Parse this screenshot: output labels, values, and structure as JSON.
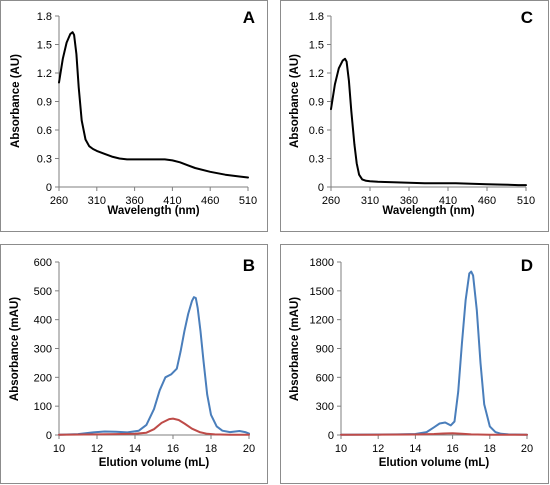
{
  "chart_data": [
    {
      "panel_label": "A",
      "type": "line",
      "xlabel": "Wavelength  (nm)",
      "ylabel": "Absorbance (AU)",
      "xlim": [
        260,
        510
      ],
      "ylim": [
        0,
        1.8
      ],
      "xticks": [
        "260",
        "310",
        "360",
        "410",
        "460",
        "510"
      ],
      "yticks": [
        "0",
        "0.3",
        "0.6",
        "0.9",
        "1.2",
        "1.5",
        "1.8"
      ],
      "grid": false,
      "series": [
        {
          "color": "#000000",
          "x": [
            260,
            265,
            270,
            275,
            278,
            280,
            283,
            286,
            290,
            295,
            300,
            305,
            310,
            320,
            330,
            340,
            350,
            360,
            380,
            400,
            410,
            420,
            430,
            440,
            460,
            480,
            500,
            510
          ],
          "y": [
            1.1,
            1.35,
            1.52,
            1.61,
            1.63,
            1.6,
            1.4,
            1.05,
            0.7,
            0.5,
            0.43,
            0.4,
            0.38,
            0.35,
            0.32,
            0.3,
            0.29,
            0.29,
            0.29,
            0.29,
            0.28,
            0.26,
            0.23,
            0.2,
            0.16,
            0.13,
            0.11,
            0.1
          ]
        }
      ]
    },
    {
      "panel_label": "C",
      "type": "line",
      "xlabel": "Wavelength  (nm)",
      "ylabel": "Absorbance (AU)",
      "xlim": [
        260,
        510
      ],
      "ylim": [
        0,
        1.8
      ],
      "xticks": [
        "260",
        "310",
        "360",
        "410",
        "460",
        "510"
      ],
      "yticks": [
        "0",
        "0.3",
        "0.6",
        "0.9",
        "1.2",
        "1.5",
        "1.8"
      ],
      "grid": false,
      "series": [
        {
          "color": "#000000",
          "x": [
            260,
            265,
            270,
            275,
            278,
            280,
            283,
            286,
            290,
            293,
            296,
            300,
            305,
            310,
            320,
            340,
            360,
            380,
            400,
            420,
            440,
            460,
            480,
            500,
            510
          ],
          "y": [
            0.82,
            1.08,
            1.25,
            1.33,
            1.35,
            1.32,
            1.12,
            0.8,
            0.45,
            0.25,
            0.13,
            0.08,
            0.065,
            0.06,
            0.055,
            0.05,
            0.045,
            0.04,
            0.04,
            0.04,
            0.035,
            0.03,
            0.025,
            0.02,
            0.02
          ]
        }
      ]
    },
    {
      "panel_label": "B",
      "type": "line",
      "xlabel": "Elution volume (mL)",
      "ylabel": "Absorbance (mAU)",
      "xlim": [
        10,
        20
      ],
      "ylim": [
        0,
        600
      ],
      "xticks": [
        "10",
        "12",
        "14",
        "16",
        "18",
        "20"
      ],
      "yticks": [
        "0",
        "100",
        "200",
        "300",
        "400",
        "500",
        "600"
      ],
      "grid": false,
      "series": [
        {
          "color": "#4a7ebb",
          "x": [
            10,
            11,
            11.8,
            12.4,
            13,
            13.6,
            14.2,
            14.6,
            15,
            15.3,
            15.6,
            15.9,
            16.2,
            16.4,
            16.6,
            16.8,
            17,
            17.1,
            17.2,
            17.3,
            17.45,
            17.6,
            17.8,
            18,
            18.3,
            18.6,
            19,
            19.5,
            19.8,
            20
          ],
          "y": [
            1,
            3,
            9,
            12,
            11,
            9,
            15,
            35,
            90,
            155,
            200,
            210,
            230,
            290,
            360,
            420,
            465,
            478,
            475,
            440,
            360,
            260,
            140,
            70,
            30,
            15,
            10,
            14,
            10,
            5
          ]
        },
        {
          "color": "#be4b48",
          "x": [
            10,
            12,
            13,
            14,
            14.6,
            15,
            15.4,
            15.8,
            16,
            16.3,
            16.6,
            17,
            17.4,
            17.8,
            18.2,
            19,
            20
          ],
          "y": [
            1,
            2,
            3,
            4,
            8,
            20,
            42,
            55,
            57,
            52,
            40,
            22,
            10,
            4,
            2,
            1,
            1
          ]
        }
      ]
    },
    {
      "panel_label": "D",
      "type": "line",
      "xlabel": "Elution volume (mL)",
      "ylabel": "Absorbance (mAU)",
      "xlim": [
        10,
        20
      ],
      "ylim": [
        0,
        1800
      ],
      "xticks": [
        "10",
        "12",
        "14",
        "16",
        "18",
        "20"
      ],
      "yticks": [
        "0",
        "300",
        "600",
        "900",
        "1200",
        "1500",
        "1800"
      ],
      "grid": false,
      "series": [
        {
          "color": "#4a7ebb",
          "x": [
            10,
            12,
            13,
            14,
            14.6,
            15,
            15.3,
            15.6,
            15.9,
            16.1,
            16.3,
            16.5,
            16.7,
            16.9,
            17,
            17.1,
            17.3,
            17.5,
            17.7,
            18,
            18.3,
            18.6,
            19,
            20
          ],
          "y": [
            2,
            5,
            6,
            10,
            30,
            80,
            120,
            130,
            100,
            140,
            450,
            950,
            1400,
            1680,
            1700,
            1660,
            1300,
            750,
            320,
            90,
            30,
            12,
            6,
            2
          ]
        },
        {
          "color": "#be4b48",
          "x": [
            10,
            12,
            14,
            15,
            15.5,
            16,
            16.5,
            17,
            18,
            20
          ],
          "y": [
            2,
            3,
            5,
            10,
            16,
            18,
            13,
            6,
            3,
            2
          ]
        }
      ]
    }
  ]
}
